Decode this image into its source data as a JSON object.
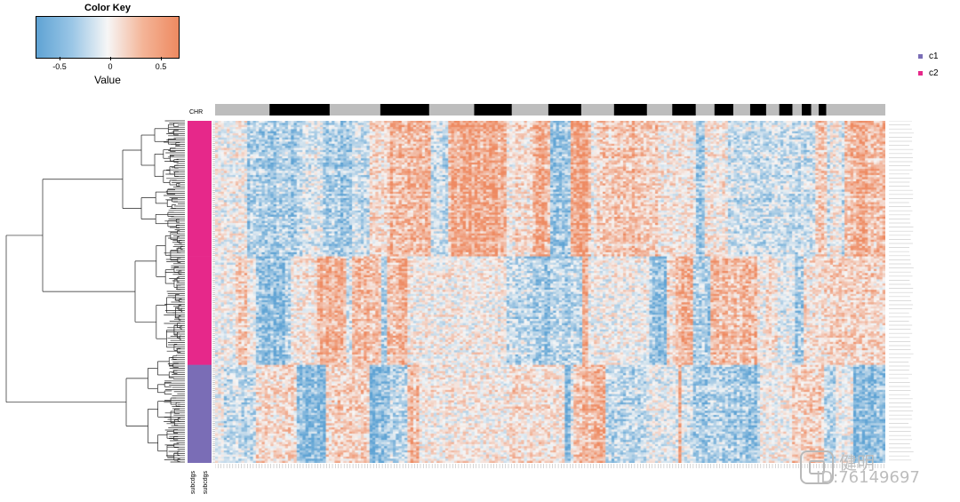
{
  "color_key": {
    "title": "Color Key",
    "label": "Value",
    "ticks": [
      "-0.5",
      "0",
      "0.5"
    ],
    "low_color": "#5fa3d4",
    "mid_color": "#f6f6f6",
    "high_color": "#ee8a61"
  },
  "legend": [
    {
      "label": "c1",
      "color": "#7a6db6"
    },
    {
      "label": "c2",
      "color": "#e6288a"
    }
  ],
  "annotation": {
    "top_label": "CHR",
    "bottom_labels": [
      "subcdgs",
      "subcdgs"
    ]
  },
  "chart_data": {
    "type": "heatmap",
    "title": "",
    "xlabel": "",
    "ylabel": "",
    "value_range": [
      -0.7,
      0.7
    ],
    "row_clusters": [
      {
        "name": "c2",
        "rows": 65
      },
      {
        "name": "c2",
        "rows": 52
      },
      {
        "name": "c1",
        "rows": 47
      }
    ],
    "chromosome_segments": 23,
    "columns": 230
  },
  "watermark": {
    "name": "健明",
    "id": "ID:76149697"
  }
}
